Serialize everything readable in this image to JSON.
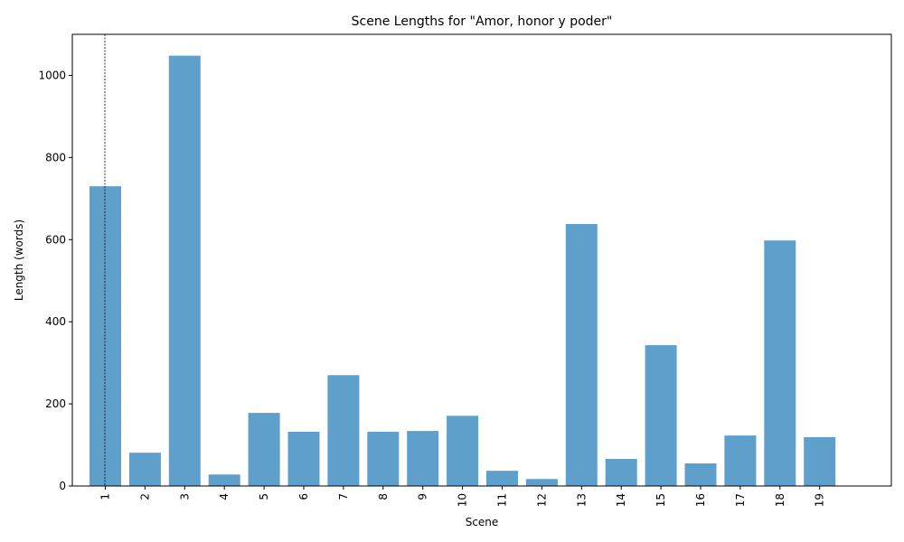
{
  "chart_data": {
    "type": "bar",
    "title": "Scene Lengths for \"Amor, honor y poder\"",
    "xlabel": "Scene",
    "ylabel": "Length (words)",
    "categories": [
      "1",
      "2",
      "3",
      "4",
      "5",
      "6",
      "7",
      "8",
      "9",
      "10",
      "11",
      "12",
      "13",
      "14",
      "15",
      "16",
      "17",
      "18",
      "19"
    ],
    "values": [
      730,
      81,
      1048,
      28,
      178,
      132,
      270,
      132,
      134,
      171,
      37,
      17,
      638,
      66,
      343,
      55,
      123,
      598,
      119
    ],
    "ylim": [
      0,
      1100
    ],
    "yticks": [
      0,
      200,
      400,
      600,
      800,
      1000
    ],
    "bar_color": "#5f9fcc",
    "reference_line": {
      "x": 0.45,
      "style": "dashed"
    },
    "grid": false,
    "legend": "none"
  }
}
